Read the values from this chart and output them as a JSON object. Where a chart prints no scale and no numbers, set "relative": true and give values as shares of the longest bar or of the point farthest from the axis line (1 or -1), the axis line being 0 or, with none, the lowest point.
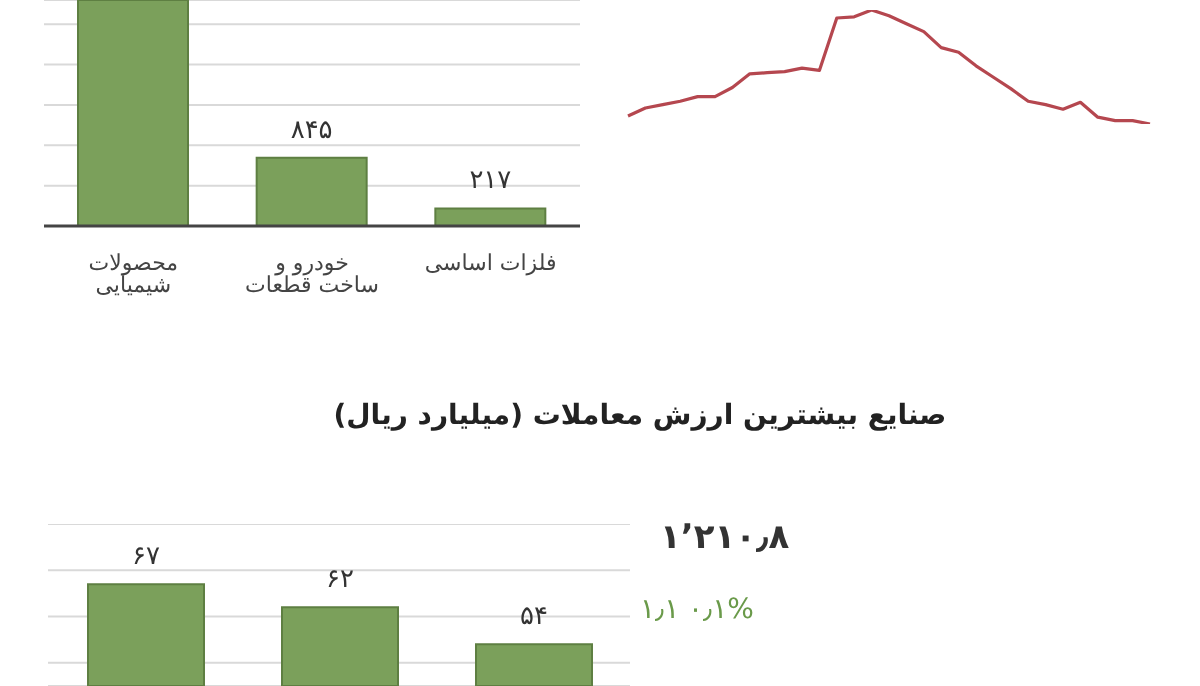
{
  "chart_data": [
    {
      "type": "bar",
      "categories": [
        "محصولات شیمیایی",
        "خودرو و ساخت قطعات",
        "فلزات اساسی"
      ],
      "values": [
        2800,
        845,
        217
      ],
      "color": "#7ba05b",
      "ylim": [
        0,
        2800
      ],
      "yticks": [
        0,
        500,
        1000,
        1500,
        2000,
        2500
      ],
      "grid": "y",
      "tick_labels": "x",
      "value_labels": [
        null,
        "۸۴۵",
        "۲۱۷"
      ]
    },
    {
      "type": "line",
      "relative": true,
      "categories": [
        null,
        null,
        null,
        null,
        null,
        null,
        null,
        null,
        null,
        null,
        null,
        null,
        null,
        null,
        null,
        null,
        null,
        null,
        null,
        null,
        null,
        null,
        null,
        null,
        null,
        null,
        null,
        null,
        null,
        null,
        null
      ],
      "color": "#b5474f",
      "values": [
        0.07,
        0.14,
        0.17,
        0.2,
        0.24,
        0.24,
        0.32,
        0.44,
        0.45,
        0.46,
        0.49,
        0.47,
        0.93,
        0.94,
        1,
        0.95,
        0.88,
        0.81,
        0.67,
        0.63,
        0.51,
        0.41,
        0.31,
        0.2,
        0.17,
        0.13,
        0.19,
        0.06,
        0.03,
        0.03,
        0
      ]
    },
    {
      "type": "bar",
      "title": "صنایع بیشترین ارزش معاملات (میلیارد ریال)",
      "categories": [
        null,
        null,
        null
      ],
      "values": [
        67,
        62,
        54
      ],
      "color": "#7ba05b",
      "ylim": [
        45,
        80
      ],
      "yticks": [
        50,
        60,
        70,
        80
      ],
      "grid": "y",
      "tick_labels": false,
      "value_labels": [
        "۶۷",
        "۶۲",
        "۵۴"
      ]
    },
    {
      "type": "other",
      "annotations": [
        "۱٬۲۱۰٫۸",
        "۱٫۱",
        "۰٫۱%"
      ]
    }
  ]
}
